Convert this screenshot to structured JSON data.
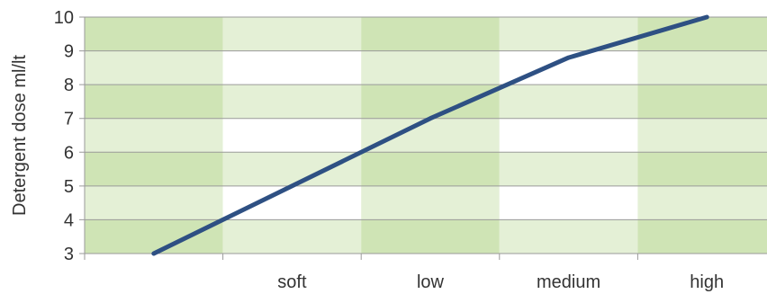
{
  "chart_data": {
    "type": "line",
    "ylabel": "Detergent dose ml/lt",
    "xlabel": "",
    "title": "",
    "categories": [
      "",
      "soft",
      "low",
      "medium",
      "high"
    ],
    "x_ticks": [
      "soft",
      "low",
      "medium",
      "high"
    ],
    "ylim": [
      3,
      10
    ],
    "yticks": [
      3,
      4,
      5,
      6,
      7,
      8,
      9,
      10
    ],
    "grid": "horizontal",
    "series": [
      {
        "color": "#2e5083",
        "points": [
          {
            "x": 0.5,
            "y": 3
          },
          {
            "x": 1.0,
            "y": 4
          },
          {
            "x": 2.5,
            "y": 7
          },
          {
            "x": 3.5,
            "y": 8.8
          },
          {
            "x": 4.5,
            "y": 10
          }
        ]
      }
    ],
    "background_bands": {
      "colors": {
        "dark": "#cfe4b5",
        "light": "#e4f0d6",
        "white": "#ffffff"
      },
      "columns": [
        [
          "dark",
          "light",
          "dark",
          "light",
          "dark",
          "light",
          "dark"
        ],
        [
          "light",
          "white",
          "light",
          "white",
          "light",
          "white",
          "light"
        ],
        [
          "dark",
          "light",
          "dark",
          "light",
          "dark",
          "light",
          "dark"
        ],
        [
          "light",
          "white",
          "light",
          "white",
          "light",
          "white",
          "light"
        ],
        [
          "dark",
          "light",
          "dark",
          "light",
          "dark",
          "light",
          "dark"
        ]
      ]
    }
  }
}
